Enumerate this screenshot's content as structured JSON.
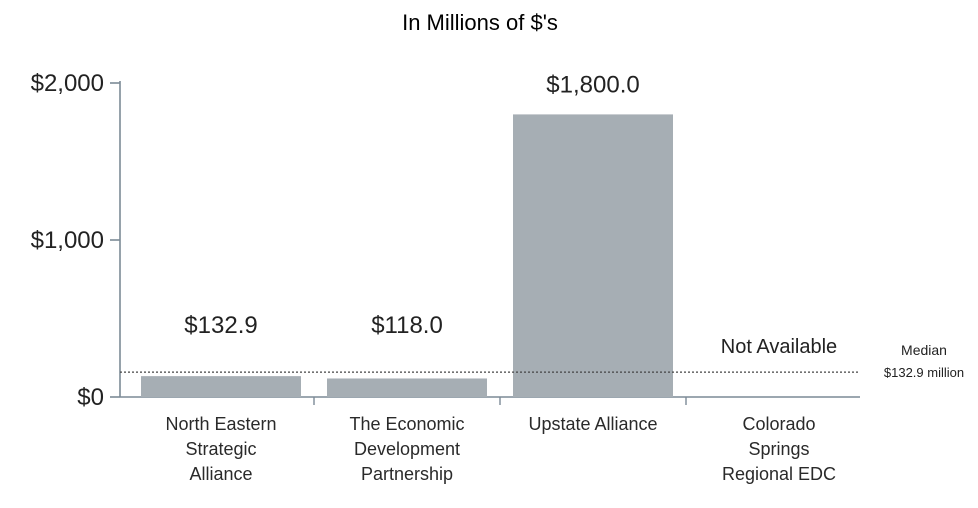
{
  "chart_data": {
    "type": "bar",
    "title": "In Millions of $'s",
    "categories": [
      [
        "North Eastern",
        "Strategic",
        "Alliance"
      ],
      [
        "The Economic",
        "Development",
        "Partnership"
      ],
      [
        "Upstate Alliance"
      ],
      [
        "Colorado",
        "Springs",
        "Regional EDC"
      ]
    ],
    "values": [
      132.9,
      118.0,
      1800.0,
      null
    ],
    "data_labels": [
      "$132.9",
      "$118.0",
      "$1,800.0",
      "Not Available"
    ],
    "ylim": [
      0,
      2000
    ],
    "yticks": [
      0,
      1000,
      2000
    ],
    "ytick_labels": [
      "$0",
      "$1,000",
      "$2,000"
    ],
    "grid": false,
    "median": {
      "value": 132.9,
      "label_lines": [
        "Median",
        "$132.9 million"
      ]
    },
    "colors": {
      "bar": "#a6aeb4",
      "axis": "#7c8a96",
      "text": "#222222",
      "category_text": "#2a2a2a",
      "median_line": "#444444"
    }
  }
}
